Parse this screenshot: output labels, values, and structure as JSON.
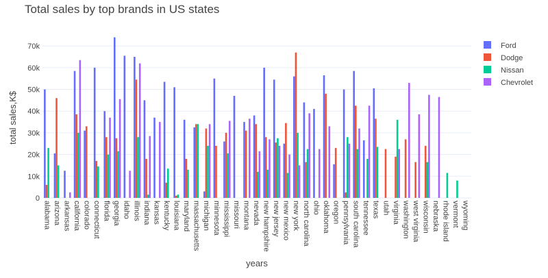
{
  "chart_data": {
    "type": "bar",
    "title": "Total sales by top brands in US states",
    "xlabel": "years",
    "ylabel": "total sales,K$",
    "ylim": [
      0,
      77000
    ],
    "yticks": [
      0,
      10000,
      20000,
      30000,
      40000,
      50000,
      60000,
      70000
    ],
    "ytick_labels": [
      "0",
      "10k",
      "20k",
      "30k",
      "40k",
      "50k",
      "60k",
      "70k"
    ],
    "grid": true,
    "legend_position": "top-right",
    "categories": [
      "alabama",
      "arizona",
      "arkansas",
      "california",
      "colorado",
      "connecticut",
      "florida",
      "georgia",
      "idaho",
      "illinois",
      "indiana",
      "kansas",
      "kentucky",
      "louisiana",
      "maryland",
      "massachusetts",
      "michigan",
      "minnesota",
      "mississippi",
      "missouri",
      "montana",
      "nevada",
      "new hampshire",
      "new jersey",
      "new mexico",
      "new york",
      "north carolina",
      "ohio",
      "oklahoma",
      "oregon",
      "pennsylvania",
      "south carolina",
      "tennessee",
      "texas",
      "utah",
      "virginia",
      "washington",
      "west virginia",
      "wisconsin",
      "nebraska",
      "rhode island",
      "vermont",
      "wyoming"
    ],
    "series": [
      {
        "name": "Ford",
        "color": "#636efa",
        "values": [
          50000,
          20500,
          12500,
          58500,
          31000,
          60000,
          40000,
          74000,
          65500,
          65000,
          45000,
          37000,
          53500,
          51000,
          36000,
          32500,
          3000,
          55000,
          26000,
          47000,
          35000,
          38000,
          60000,
          54500,
          25000,
          56000,
          44000,
          41000,
          56500,
          15500,
          50000,
          58500,
          26500,
          50500,
          0,
          0,
          0,
          0,
          0,
          0,
          0,
          0,
          0
        ]
      },
      {
        "name": "Dodge",
        "color": "#EF553B",
        "values": [
          6000,
          46000,
          0,
          38500,
          33000,
          17000,
          28000,
          27500,
          0,
          54500,
          18000,
          0,
          7000,
          1000,
          18000,
          34000,
          32000,
          24000,
          30000,
          0,
          31000,
          34000,
          28000,
          25500,
          34500,
          67000,
          16500,
          0,
          48000,
          23000,
          2500,
          42500,
          0,
          36500,
          22500,
          19000,
          27000,
          16500,
          24000,
          0,
          0,
          0,
          0
        ]
      },
      {
        "name": "Nissan",
        "color": "#00cc96",
        "values": [
          23000,
          15000,
          0,
          30000,
          0,
          14500,
          20000,
          21500,
          0,
          28000,
          1500,
          0,
          13500,
          1500,
          13000,
          34000,
          24000,
          0,
          20500,
          0,
          0,
          12000,
          13000,
          27500,
          11500,
          30000,
          22500,
          0,
          0,
          0,
          28000,
          22500,
          18000,
          23500,
          0,
          36000,
          0,
          0,
          16500,
          0,
          11500,
          8000,
          0
        ]
      },
      {
        "name": "Chevrolet",
        "color": "#ab63fa",
        "values": [
          0,
          0,
          2500,
          63500,
          0,
          0,
          37000,
          45500,
          12500,
          62000,
          28500,
          35000,
          0,
          0,
          0,
          0,
          34000,
          0,
          35500,
          0,
          36500,
          21500,
          27000,
          24000,
          20000,
          15000,
          39000,
          22500,
          33000,
          0,
          25000,
          32000,
          42500,
          0,
          0,
          22500,
          53000,
          38500,
          47500,
          46500,
          0,
          0,
          0
        ]
      }
    ]
  }
}
